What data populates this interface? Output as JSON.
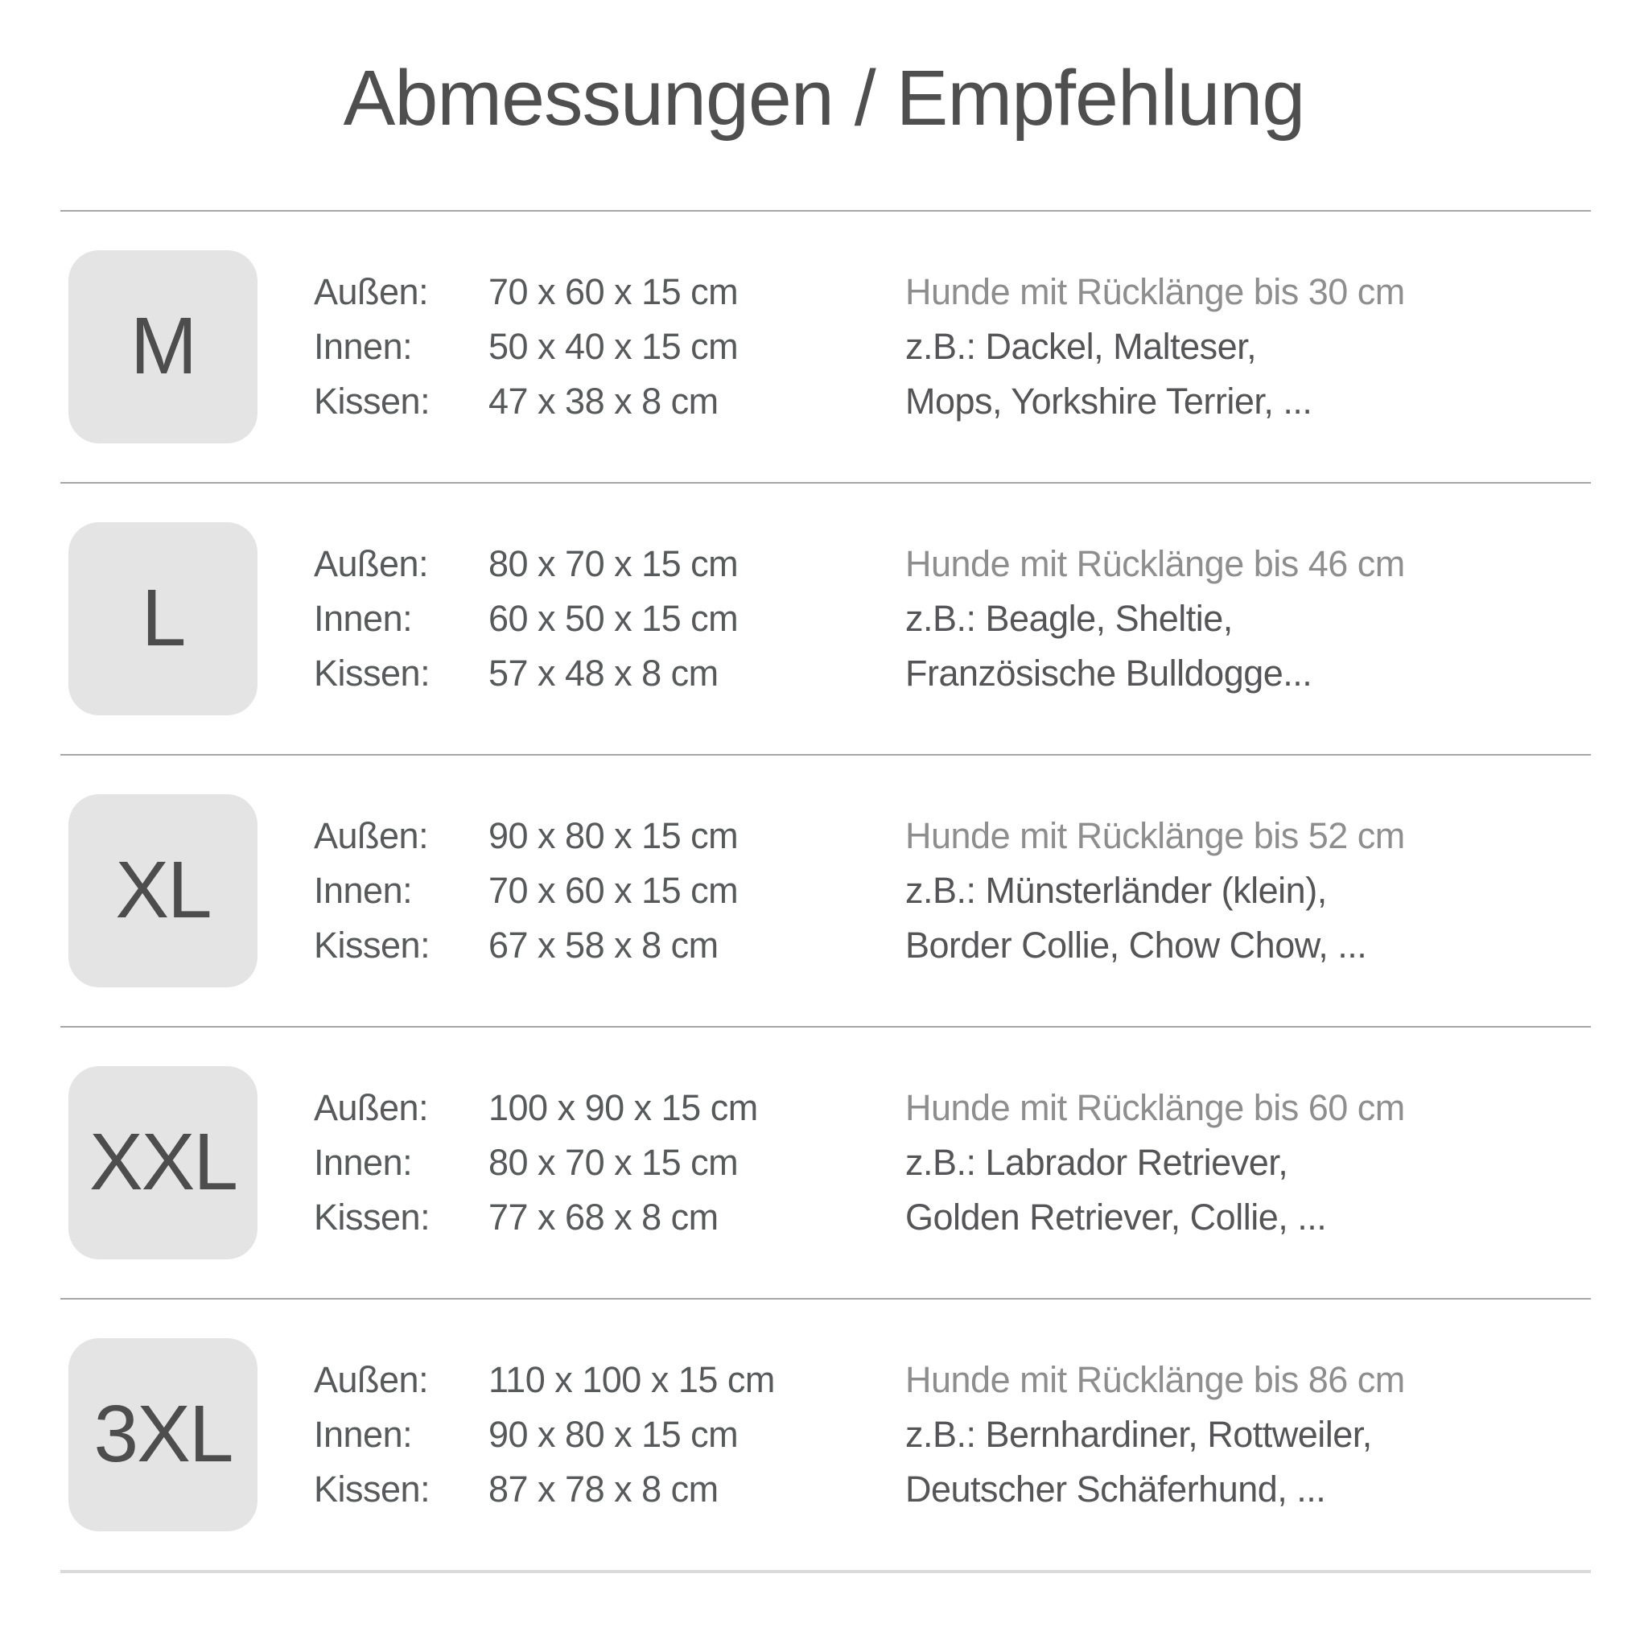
{
  "title": "Abmessungen / Empfehlung",
  "dimension_labels": {
    "outer": "Außen:",
    "inner": "Innen:",
    "cushion": "Kissen:"
  },
  "rows": [
    {
      "size": "M",
      "outer": "70 x 60 x 15 cm",
      "inner": "50 x 40 x 15 cm",
      "cushion": "47 x 38 x 8 cm",
      "rec1": "Hunde mit Rücklänge bis 30 cm",
      "rec2": "z.B.: Dackel, Malteser,",
      "rec3": "Mops, Yorkshire Terrier, ..."
    },
    {
      "size": "L",
      "outer": "80 x 70 x 15 cm",
      "inner": "60 x 50 x 15 cm",
      "cushion": "57 x 48 x 8 cm",
      "rec1": "Hunde mit Rücklänge bis 46 cm",
      "rec2": "z.B.: Beagle, Sheltie,",
      "rec3": "Französische Bulldogge..."
    },
    {
      "size": "XL",
      "outer": "90 x 80 x 15 cm",
      "inner": "70 x 60 x 15 cm",
      "cushion": "67 x 58 x 8 cm",
      "rec1": "Hunde mit Rücklänge bis 52 cm",
      "rec2": "z.B.: Münsterländer (klein),",
      "rec3": "Border Collie, Chow Chow, ..."
    },
    {
      "size": "XXL",
      "outer": "100 x 90 x 15 cm",
      "inner": "80 x 70 x 15 cm",
      "cushion": "77 x 68 x 8 cm",
      "rec1": "Hunde mit Rücklänge bis 60 cm",
      "rec2": "z.B.: Labrador Retriever,",
      "rec3": "Golden Retriever, Collie, ..."
    },
    {
      "size": "3XL",
      "outer": "110 x 100 x 15 cm",
      "inner": "90 x 80 x 15 cm",
      "cushion": "87 x 78 x 8 cm",
      "rec1": "Hunde mit Rücklänge bis 86 cm",
      "rec2": "z.B.: Bernhardiner, Rottweiler,",
      "rec3": "Deutscher Schäferhund, ..."
    }
  ],
  "colors": {
    "title_text": "#4f4f4f",
    "dims_text": "#58595b",
    "rec_size_text": "#8e8e8e",
    "rec_breeds_text": "#555557",
    "badge_background": "#e4e4e4",
    "badge_text": "#4d4d4d",
    "row_divider": "#a6a6a6",
    "bottom_divider": "#dadada"
  }
}
